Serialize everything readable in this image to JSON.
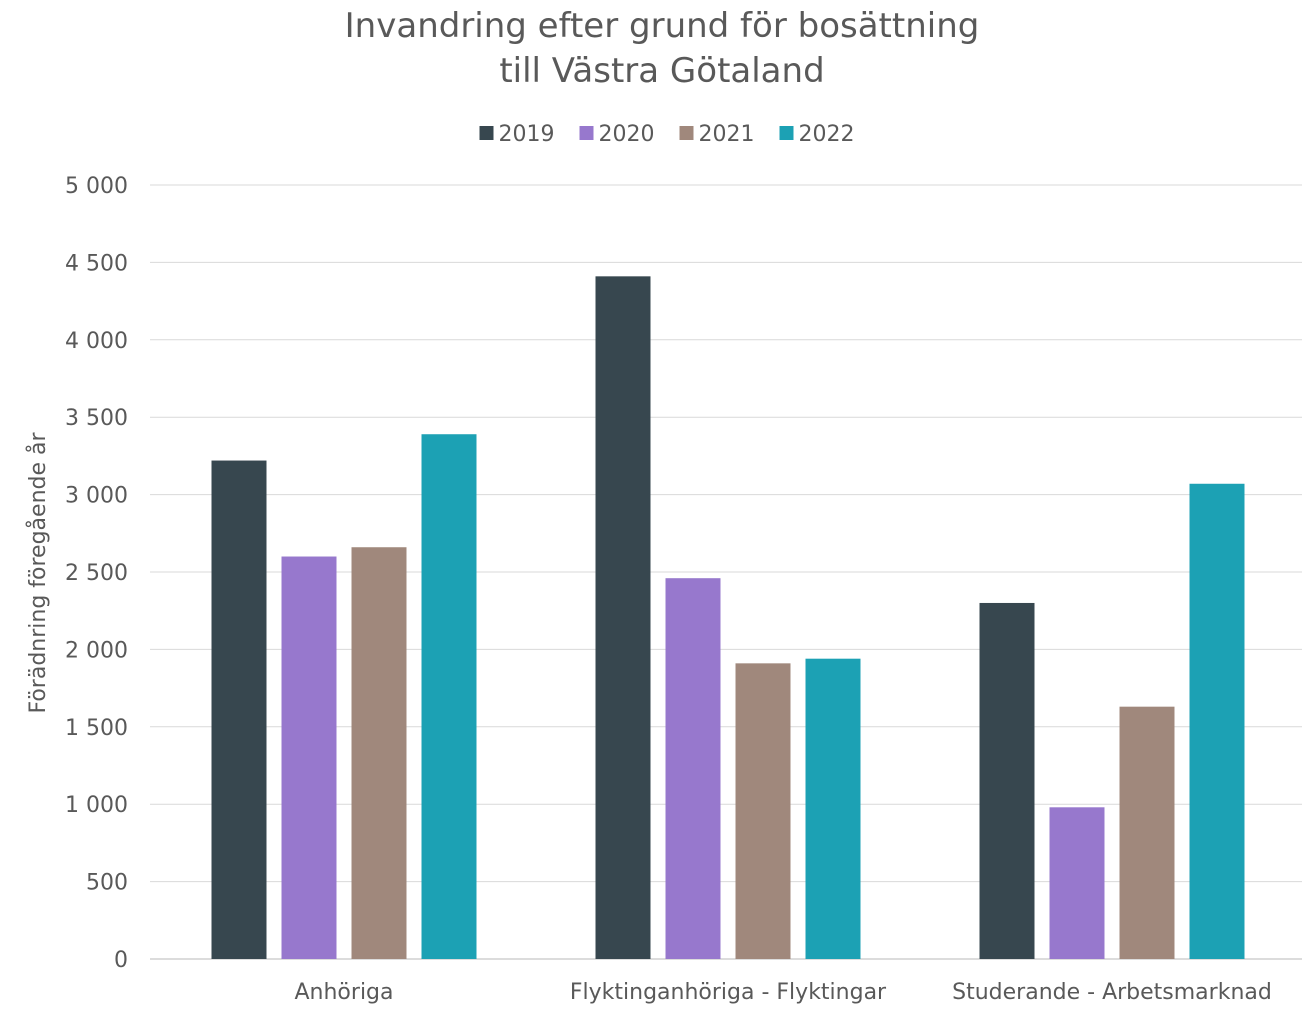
{
  "chart_data": {
    "type": "bar",
    "title_lines": [
      "Invandring efter grund för bosättning",
      "till Västra Götaland"
    ],
    "ylabel": "Förädnring föregående år",
    "xlabel": "",
    "ylim": [
      0,
      5000
    ],
    "yticks": [
      0,
      500,
      1000,
      1500,
      2000,
      2500,
      3000,
      3500,
      4000,
      4500,
      5000
    ],
    "ytick_labels": [
      "0",
      "500",
      "1 000",
      "1 500",
      "2 000",
      "2 500",
      "3 000",
      "3 500",
      "4 000",
      "4 500",
      "5 000"
    ],
    "grid": true,
    "legend_position": "top",
    "categories": [
      "Anhöriga",
      "Flyktinganhöriga - Flyktingar",
      "Studerande - Arbetsmarknad"
    ],
    "series": [
      {
        "name": "2019",
        "color": "#37474f",
        "values": [
          3220,
          4410,
          2300
        ]
      },
      {
        "name": "2020",
        "color": "#9778cd",
        "values": [
          2600,
          2460,
          980
        ]
      },
      {
        "name": "2021",
        "color": "#a0887c",
        "values": [
          2660,
          1910,
          1630
        ]
      },
      {
        "name": "2022",
        "color": "#1ca1b4",
        "values": [
          3390,
          1940,
          3070
        ]
      }
    ]
  }
}
